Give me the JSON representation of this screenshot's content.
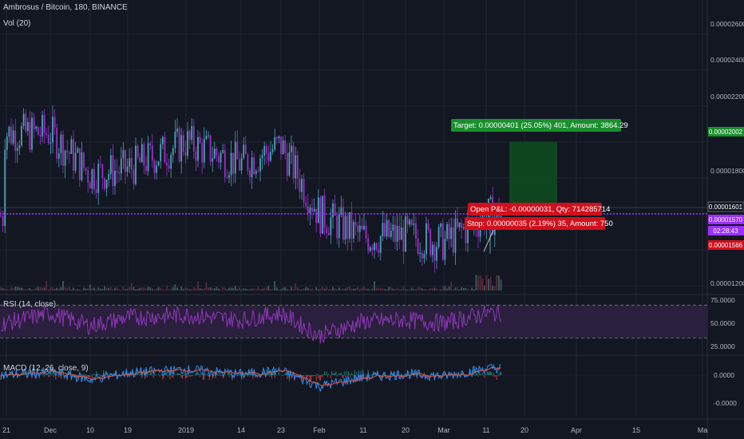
{
  "header": {
    "title": "Ambrosus / Bitcoin, 180, BINANCE",
    "volume_label": "Vol (20)",
    "rsi_label": "RSI (14, close)",
    "macd_label": "MACD (12, 26, close, 9)"
  },
  "colors": {
    "background": "#131722",
    "grid": "#1f2433",
    "text": "#b2b5be",
    "candle_up": "#4aa3b5",
    "candle_down": "#9b2fc9",
    "level_line": "#9b30ff",
    "target_box": "#0f4a1e",
    "target_badge": "#1a8f2e",
    "stop_badge": "#d0101c",
    "rsi_fill": "#2a1f3d",
    "rsi_line": "#8e38b8",
    "macd_line": "#2d8cf0",
    "signal_line": "#e8543c"
  },
  "price_axis": {
    "ticks": [
      "0.00002600",
      "0.00002400",
      "0.00002200",
      "0.00001800",
      "0.00001200"
    ],
    "ylim": [
      1.17e-05,
      2.7e-05
    ],
    "badges": [
      {
        "value": "0.00002002",
        "color": "#1a8f2e"
      },
      {
        "value": "0.00001601",
        "color": "#131722"
      },
      {
        "value": "0.00001570",
        "color": "#9b30ff"
      },
      {
        "value": "02:28:43",
        "color": "#9b30ff"
      },
      {
        "value": "0.00001566",
        "color": "#d0101c"
      }
    ]
  },
  "rsi_axis": {
    "ticks": [
      "75.0000",
      "50.0000",
      "25.0000"
    ],
    "ylim": [
      12,
      80
    ]
  },
  "macd_axis": {
    "ticks": [
      "0.0000",
      "-0.0000"
    ]
  },
  "date_axis": {
    "labels": [
      "21",
      "Dec",
      "10",
      "19",
      "2019",
      "14",
      "23",
      "Feb",
      "11",
      "20",
      "Mar",
      "11",
      "20",
      "Apr",
      "15",
      "Ma"
    ]
  },
  "position": {
    "target_label": "Target: 0.00000401 (25.05%) 401, Amount: 3864.29",
    "open_label": "Open P&L: -0.00000031, Qty: 714285714",
    "stop_label": "Stop: 0.00000035 (2.19%) 35, Amount: 750"
  },
  "chart_data": {
    "type": "candlestick",
    "title": "Ambrosus / Bitcoin, 180, BINANCE",
    "x": [
      "21",
      "Dec",
      "10",
      "19",
      "2019",
      "14",
      "23",
      "Feb",
      "11",
      "20",
      "Mar",
      "11"
    ],
    "series": [
      {
        "name": "price",
        "values": [
          2.05e-05,
          2.05e-05,
          1.82e-05,
          1.85e-05,
          2e-05,
          1.88e-05,
          1.98e-05,
          1.6e-05,
          1.47e-05,
          1.48e-05,
          1.44e-05,
          1.59e-05
        ]
      },
      {
        "name": "RSI (14, close)",
        "values": [
          48,
          60,
          45,
          55,
          58,
          52,
          60,
          33,
          50,
          52,
          48,
          60
        ]
      },
      {
        "name": "MACD",
        "values": [
          0.0,
          0.3,
          -0.4,
          0.2,
          0.5,
          0.1,
          0.4,
          -1.0,
          -0.2,
          0.1,
          -0.1,
          0.6
        ]
      }
    ],
    "levels": {
      "target": 2.002e-05,
      "entry": 1.601e-05,
      "current": 1.57e-05,
      "stop": 1.566e-05
    },
    "ylim": [
      1.17e-05,
      2.7e-05
    ],
    "grid": true
  }
}
